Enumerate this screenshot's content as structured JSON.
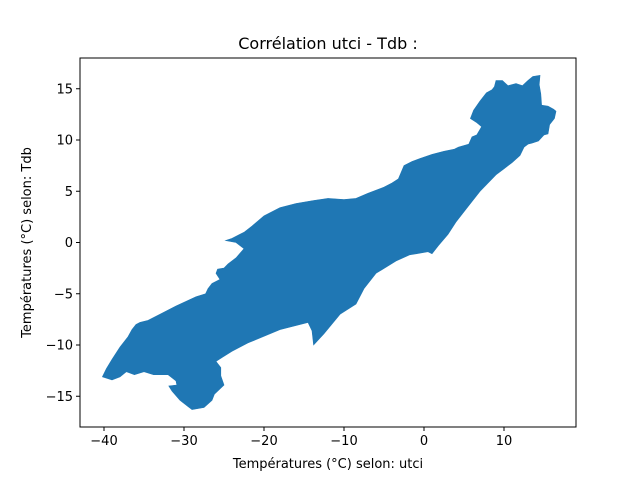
{
  "chart_data": {
    "type": "area",
    "title": "Corrélation utci - Tdb :",
    "xlabel": "Températures (°C) selon: utci",
    "ylabel": "Températures (°C) selon: Tdb",
    "xlim": [
      -43,
      19
    ],
    "ylim": [
      -18,
      18
    ],
    "xticks": [
      -40,
      -30,
      -20,
      -10,
      0,
      10
    ],
    "yticks": [
      -15,
      -10,
      -5,
      0,
      5,
      10,
      15
    ],
    "xtick_labels": [
      "−40",
      "−30",
      "−20",
      "−10",
      "0",
      "10"
    ],
    "ytick_labels": [
      "−15",
      "−10",
      "−5",
      "0",
      "5",
      "10",
      "15"
    ],
    "grid": false,
    "color": "#1f77b4",
    "series": [
      {
        "points": [
          [
            -40.2,
            -13.1
          ],
          [
            -39.0,
            -13.4
          ],
          [
            -38.0,
            -13.1
          ],
          [
            -37.2,
            -12.6
          ],
          [
            -36.2,
            -12.9
          ],
          [
            -35.0,
            -12.6
          ],
          [
            -33.8,
            -12.9
          ],
          [
            -32.0,
            -12.9
          ],
          [
            -31.0,
            -13.5
          ],
          [
            -30.9,
            -13.9
          ],
          [
            -31.9,
            -14.0
          ],
          [
            -31.5,
            -14.5
          ],
          [
            -30.5,
            -15.4
          ],
          [
            -29.5,
            -16.0
          ],
          [
            -29.0,
            -16.3
          ],
          [
            -27.5,
            -16.1
          ],
          [
            -26.5,
            -15.4
          ],
          [
            -26.2,
            -14.8
          ],
          [
            -25.0,
            -13.9
          ],
          [
            -25.4,
            -13.0
          ],
          [
            -25.4,
            -12.2
          ],
          [
            -26.0,
            -11.6
          ],
          [
            -25.2,
            -11.2
          ],
          [
            -24.0,
            -10.6
          ],
          [
            -22.0,
            -9.8
          ],
          [
            -18.0,
            -8.5
          ],
          [
            -14.5,
            -7.8
          ],
          [
            -14.0,
            -8.6
          ],
          [
            -13.8,
            -10.0
          ],
          [
            -12.5,
            -8.9
          ],
          [
            -10.5,
            -7.0
          ],
          [
            -8.5,
            -6.0
          ],
          [
            -7.5,
            -4.5
          ],
          [
            -6.0,
            -3.0
          ],
          [
            -3.5,
            -1.8
          ],
          [
            -1.8,
            -1.2
          ],
          [
            -1.0,
            -1.1
          ],
          [
            0.5,
            -0.9
          ],
          [
            1.0,
            -1.1
          ],
          [
            1.8,
            -0.3
          ],
          [
            3.0,
            0.8
          ],
          [
            4.0,
            2.0
          ],
          [
            5.5,
            3.5
          ],
          [
            7.0,
            5.0
          ],
          [
            9.0,
            6.6
          ],
          [
            10.0,
            7.2
          ],
          [
            11.0,
            7.8
          ],
          [
            12.0,
            8.5
          ],
          [
            12.5,
            9.3
          ],
          [
            13.0,
            9.6
          ],
          [
            13.5,
            9.7
          ],
          [
            14.3,
            9.9
          ],
          [
            15.0,
            10.5
          ],
          [
            15.5,
            10.6
          ],
          [
            15.7,
            11.5
          ],
          [
            16.3,
            12.1
          ],
          [
            16.5,
            12.8
          ],
          [
            16.2,
            13.0
          ],
          [
            15.5,
            13.3
          ],
          [
            14.7,
            13.4
          ],
          [
            14.6,
            14.5
          ],
          [
            14.4,
            15.4
          ],
          [
            14.5,
            16.3
          ],
          [
            13.6,
            16.2
          ],
          [
            13.0,
            15.8
          ],
          [
            12.3,
            15.3
          ],
          [
            11.5,
            15.5
          ],
          [
            10.5,
            15.3
          ],
          [
            9.8,
            15.8
          ],
          [
            9.0,
            15.8
          ],
          [
            8.8,
            15.2
          ],
          [
            8.5,
            14.9
          ],
          [
            7.8,
            14.6
          ],
          [
            7.0,
            13.8
          ],
          [
            6.2,
            12.9
          ],
          [
            5.8,
            12.1
          ],
          [
            6.6,
            11.7
          ],
          [
            7.2,
            11.3
          ],
          [
            6.6,
            10.5
          ],
          [
            6.0,
            10.3
          ],
          [
            5.6,
            9.6
          ],
          [
            4.3,
            9.3
          ],
          [
            3.8,
            9.1
          ],
          [
            2.5,
            8.9
          ],
          [
            1.0,
            8.6
          ],
          [
            -0.5,
            8.2
          ],
          [
            -1.5,
            7.9
          ],
          [
            -2.5,
            7.5
          ],
          [
            -3.2,
            6.2
          ],
          [
            -4.0,
            5.8
          ],
          [
            -5.0,
            5.4
          ],
          [
            -7.0,
            4.8
          ],
          [
            -8.5,
            4.3
          ],
          [
            -10.0,
            4.2
          ],
          [
            -12.0,
            4.3
          ],
          [
            -13.8,
            4.1
          ],
          [
            -16.0,
            3.8
          ],
          [
            -18.0,
            3.4
          ],
          [
            -20.0,
            2.6
          ],
          [
            -21.5,
            1.6
          ],
          [
            -22.5,
            1.0
          ],
          [
            -23.0,
            0.8
          ],
          [
            -24.0,
            0.4
          ],
          [
            -24.8,
            0.2
          ],
          [
            -23.5,
            0.0
          ],
          [
            -22.5,
            -0.6
          ],
          [
            -23.5,
            -1.5
          ],
          [
            -24.5,
            -2.1
          ],
          [
            -25.0,
            -2.5
          ],
          [
            -25.8,
            -2.6
          ],
          [
            -26.0,
            -3.0
          ],
          [
            -25.5,
            -3.6
          ],
          [
            -26.5,
            -4.0
          ],
          [
            -27.0,
            -4.5
          ],
          [
            -27.3,
            -5.0
          ],
          [
            -28.5,
            -5.3
          ],
          [
            -31.0,
            -6.2
          ],
          [
            -33.0,
            -7.0
          ],
          [
            -34.5,
            -7.6
          ],
          [
            -35.5,
            -7.8
          ],
          [
            -36.0,
            -8.0
          ],
          [
            -36.5,
            -8.5
          ],
          [
            -37.0,
            -9.2
          ],
          [
            -38.0,
            -10.2
          ],
          [
            -39.0,
            -11.4
          ],
          [
            -39.7,
            -12.3
          ]
        ]
      }
    ]
  }
}
